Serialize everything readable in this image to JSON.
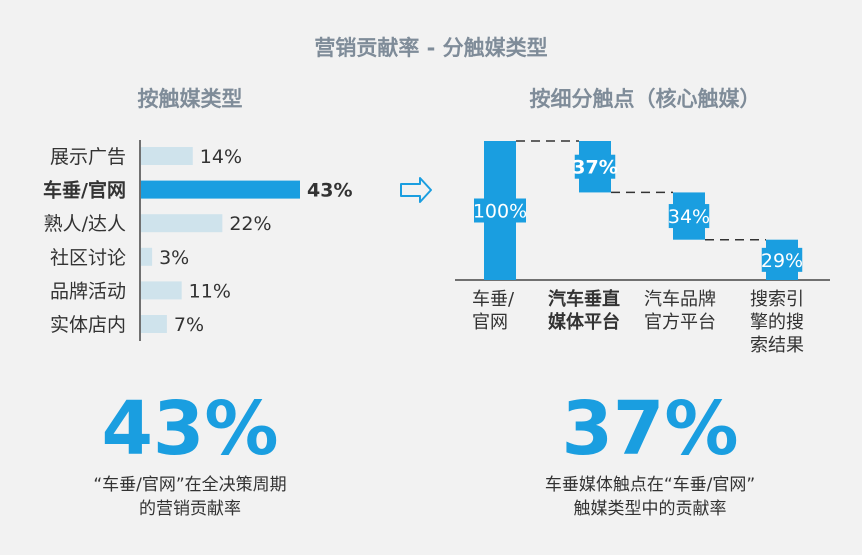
{
  "title": "营销贡献率 - 分触媒类型",
  "left_panel": {
    "title": "按触媒类型",
    "stat": "43%",
    "note_line1": "“车垂/官网”在全决策周期",
    "note_line2": "的营销贡献率"
  },
  "right_panel": {
    "title": "按细分触点（核心触媒）",
    "stat": "37%",
    "note_line1": "车垂媒体触点在“车垂/官网”",
    "note_line2": "触媒类型中的贡献率"
  },
  "arrow_icon": "right-arrow-outline-icon",
  "colors": {
    "highlight": "#1a9ee0",
    "muted_bar": "#cfe3ec",
    "title": "#7f8c99",
    "text": "#333333"
  },
  "chart_data": [
    {
      "type": "bar",
      "orientation": "horizontal",
      "title": "按触媒类型",
      "categories": [
        "展示广告",
        "车垂/官网",
        "熟人/达人",
        "社区讨论",
        "品牌活动",
        "实体店内"
      ],
      "values": [
        14,
        43,
        22,
        3,
        11,
        7
      ],
      "value_labels": [
        "14%",
        "43%",
        "22%",
        "3%",
        "11%",
        "7%"
      ],
      "highlight": "车垂/官网",
      "unit": "%"
    },
    {
      "type": "waterfall",
      "title": "按细分触点（核心触媒）",
      "categories": [
        "车垂/官网",
        "汽车垂直媒体平台",
        "汽车品牌官方平台",
        "搜索引擎的搜索结果"
      ],
      "category_lines": [
        [
          "车垂/",
          "官网"
        ],
        [
          "汽车垂直",
          "媒体平台"
        ],
        [
          "汽车品牌",
          "官方平台"
        ],
        [
          "搜索引",
          "擎的搜",
          "索结果"
        ]
      ],
      "values": [
        100,
        37,
        34,
        29
      ],
      "value_labels": [
        "100%",
        "37%",
        "34%",
        "29%"
      ],
      "bold_category": "汽车垂直媒体平台",
      "unit": "%"
    }
  ]
}
